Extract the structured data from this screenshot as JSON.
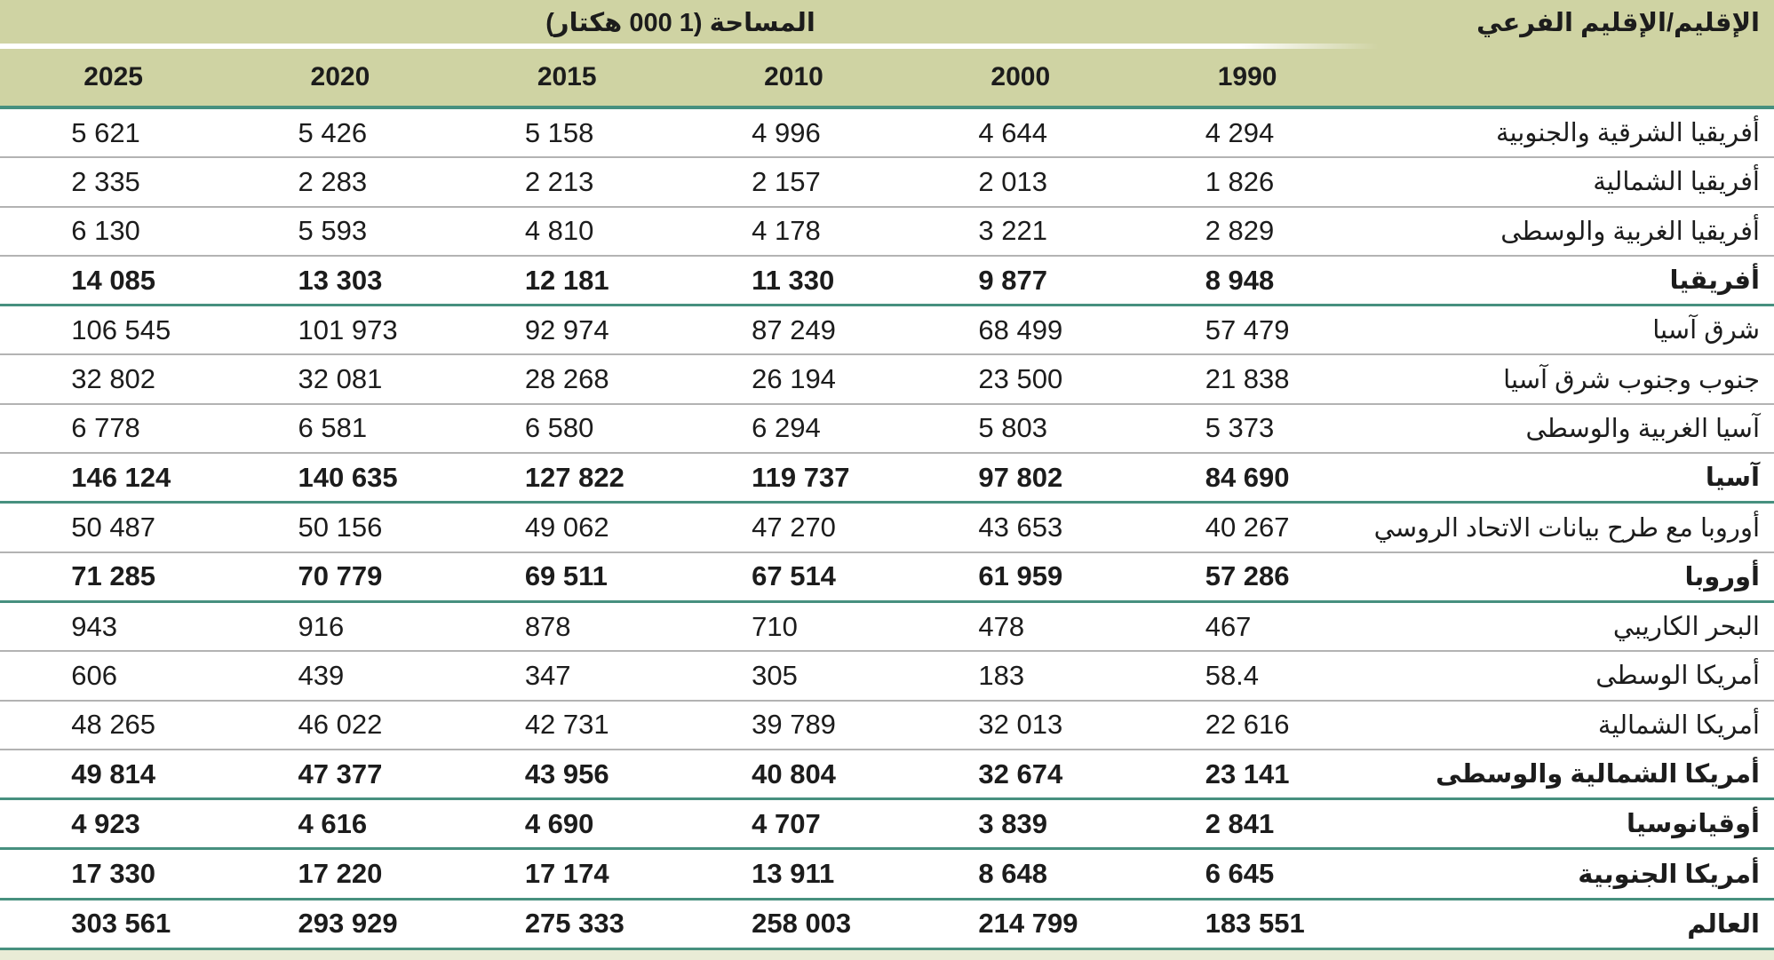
{
  "table": {
    "title": "المساحة (1 000 هكتار)",
    "region_header": "الإقليم/الإقليم الفرعي",
    "years": [
      "1990",
      "2000",
      "2010",
      "2015",
      "2020",
      "2025"
    ],
    "rows": [
      {
        "region": "أفريقيا الشرقية والجنوبية",
        "total": false,
        "values": [
          "4 294",
          "4 644",
          "4 996",
          "5 158",
          "5 426",
          "5 621"
        ]
      },
      {
        "region": "أفريقيا الشمالية",
        "total": false,
        "values": [
          "1 826",
          "2 013",
          "2 157",
          "2 213",
          "2 283",
          "2 335"
        ]
      },
      {
        "region": "أفريقيا الغربية والوسطى",
        "total": false,
        "values": [
          "2 829",
          "3 221",
          "4 178",
          "4 810",
          "5 593",
          "6 130"
        ]
      },
      {
        "region": "أفريقيا",
        "total": true,
        "values": [
          "8 948",
          "9 877",
          "11 330",
          "12 181",
          "13 303",
          "14 085"
        ]
      },
      {
        "region": "شرق آسيا",
        "total": false,
        "values": [
          "57 479",
          "68 499",
          "87 249",
          "92 974",
          "101 973",
          "106 545"
        ]
      },
      {
        "region": "جنوب وجنوب شرق آسيا",
        "total": false,
        "values": [
          "21 838",
          "23 500",
          "26 194",
          "28 268",
          "32 081",
          "32 802"
        ]
      },
      {
        "region": "آسيا الغربية والوسطى",
        "total": false,
        "values": [
          "5 373",
          "5 803",
          "6 294",
          "6 580",
          "6 581",
          "6 778"
        ]
      },
      {
        "region": "آسيا",
        "total": true,
        "values": [
          "84 690",
          "97 802",
          "119 737",
          "127 822",
          "140 635",
          "146 124"
        ]
      },
      {
        "region": "أوروبا مع طرح بيانات الاتحاد الروسي",
        "total": false,
        "values": [
          "40 267",
          "43 653",
          "47 270",
          "49 062",
          "50 156",
          "50 487"
        ]
      },
      {
        "region": "أوروبا",
        "total": true,
        "values": [
          "57 286",
          "61 959",
          "67 514",
          "69 511",
          "70 779",
          "71 285"
        ]
      },
      {
        "region": "البحر الكاريبي",
        "total": false,
        "values": [
          "467",
          "478",
          "710",
          "878",
          "916",
          "943"
        ]
      },
      {
        "region": "أمريكا الوسطى",
        "total": false,
        "values": [
          "58.4",
          "183",
          "305",
          "347",
          "439",
          "606"
        ]
      },
      {
        "region": "أمريكا الشمالية",
        "total": false,
        "values": [
          "22 616",
          "32 013",
          "39 789",
          "42 731",
          "46 022",
          "48 265"
        ]
      },
      {
        "region": "أمريكا الشمالية والوسطى",
        "total": true,
        "values": [
          "23 141",
          "32 674",
          "40 804",
          "43 956",
          "47 377",
          "49 814"
        ]
      },
      {
        "region": "أوقيانوسيا",
        "total": true,
        "values": [
          "2 841",
          "3 839",
          "4 707",
          "4 690",
          "4 616",
          "4 923"
        ]
      },
      {
        "region": "أمريكا الجنوبية",
        "total": true,
        "values": [
          "6 645",
          "8 648",
          "13 911",
          "17 174",
          "17 220",
          "17 330"
        ]
      },
      {
        "region": "العالم",
        "total": true,
        "values": [
          "183 551",
          "214 799",
          "258 003",
          "275 333",
          "293 929",
          "303 561"
        ]
      }
    ]
  },
  "colors": {
    "header_olive": "#cfd3a3",
    "teal_rule": "#47907f",
    "gray_rule": "#b3b3b3",
    "footer_strip": "#e9ecd6",
    "text": "#1c1c1c"
  }
}
